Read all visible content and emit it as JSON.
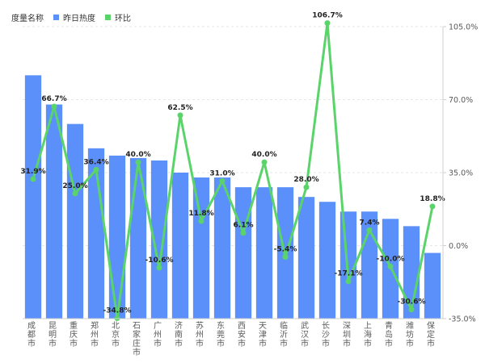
{
  "legend": {
    "title": "度量名称",
    "items": [
      {
        "label": "昨日热度",
        "color": "#5B8FF9"
      },
      {
        "label": "环比",
        "color": "#5AD46A"
      }
    ]
  },
  "chart_data": {
    "type": "bar",
    "categories": [
      "成都市",
      "昆明市",
      "重庆市",
      "郑州市",
      "北京市",
      "石家庄市",
      "广州市",
      "济南市",
      "苏州市",
      "东莞市",
      "西安市",
      "天津市",
      "临沂市",
      "武汉市",
      "长沙市",
      "深圳市",
      "上海市",
      "青岛市",
      "潍坊市",
      "保定市"
    ],
    "series": [
      {
        "name": "昨日热度",
        "type": "bar",
        "axis": "left",
        "color": "#5B8FF9",
        "values": [
          100,
          88,
          80,
          70,
          67,
          66,
          65,
          60,
          58,
          58,
          54,
          54,
          54,
          50,
          48,
          44,
          44,
          41,
          38,
          27
        ]
      },
      {
        "name": "环比",
        "type": "line",
        "axis": "right",
        "color": "#5AD46A",
        "values": [
          31.9,
          66.7,
          25.0,
          36.4,
          -34.8,
          40.0,
          -10.6,
          62.5,
          11.8,
          31.0,
          6.1,
          40.0,
          -5.4,
          28.0,
          106.7,
          -17.1,
          7.4,
          -10.0,
          -30.6,
          18.8
        ],
        "labels": [
          "31.9%",
          "66.7%",
          "25.0%",
          "36.4%",
          "-34.8%",
          "40.0%",
          "-10.6%",
          "62.5%",
          "11.8%",
          "31.0%",
          "6.1%",
          "40.0%",
          "-5.4%",
          "28.0%",
          "106.7%",
          "-17.1%",
          "7.4%",
          "-10.0%",
          "-30.6%",
          "18.8%"
        ]
      }
    ],
    "y_left": {
      "range": [
        0,
        120
      ],
      "tick_labels": []
    },
    "y_right": {
      "range": [
        -35,
        105
      ],
      "ticks": [
        -35,
        0,
        35,
        70,
        105
      ],
      "tick_labels": [
        "-35.0%",
        "0.0%",
        "35.0%",
        "70.0%",
        "105.0%"
      ]
    },
    "legend_position": "top-left",
    "grid": "horizontal-dashed"
  }
}
